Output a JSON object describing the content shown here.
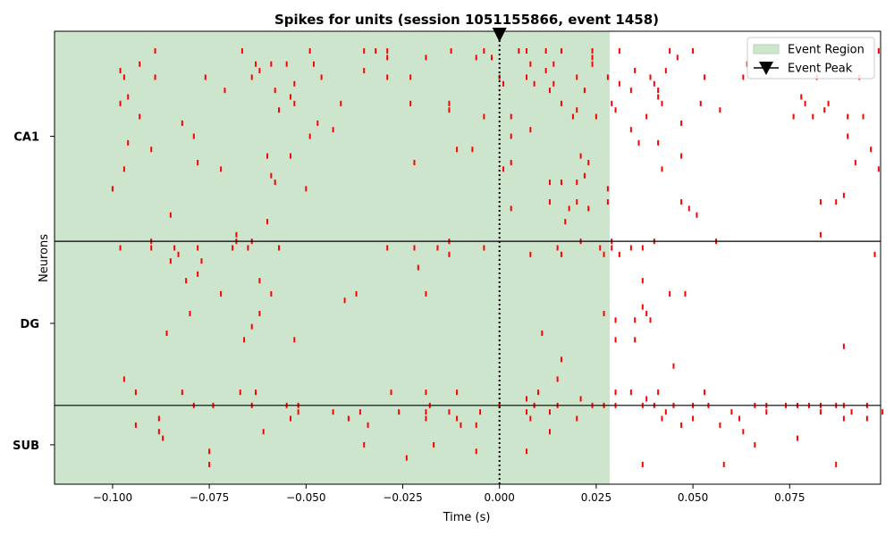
{
  "chart_data": {
    "type": "scatter",
    "title": "Spikes for units (session 1051155866, event 1458)",
    "xlabel": "Time (s)",
    "ylabel": "Neurons",
    "xlim": [
      -0.115,
      0.0985
    ],
    "ylim": [
      0,
      69
    ],
    "xticks": [
      -0.1,
      -0.075,
      -0.05,
      -0.025,
      0.0,
      0.025,
      0.05,
      0.075
    ],
    "xtick_labels": [
      "−0.100",
      "−0.075",
      "−0.050",
      "−0.025",
      "0.000",
      "0.025",
      "0.050",
      "0.075"
    ],
    "grid": false,
    "legend_position": "top-right",
    "legend": [
      {
        "label": "Event Region",
        "kind": "patch",
        "color": "#cde5cd"
      },
      {
        "label": "Event Peak",
        "kind": "marker",
        "color": "#000000"
      }
    ],
    "event_region": {
      "start": -0.115,
      "end": 0.0285,
      "color": "#cde5cd"
    },
    "event_peak": {
      "time": 0.0,
      "color": "#000000"
    },
    "spike_color": "#ff0000",
    "region_groups": [
      {
        "name": "CA1",
        "start": 37,
        "end": 69
      },
      {
        "name": "DG",
        "start": 12,
        "end": 37
      },
      {
        "name": "SUB",
        "start": 0,
        "end": 12
      }
    ],
    "boundaries": [
      37,
      12
    ],
    "series": [
      {
        "name": "CA1",
        "spikes": [
          [
            -0.089,
            66
          ],
          [
            -0.0665,
            66
          ],
          [
            -0.049,
            66
          ],
          [
            -0.035,
            66
          ],
          [
            -0.032,
            66
          ],
          [
            -0.029,
            66
          ],
          [
            -0.0125,
            66
          ],
          [
            -0.004,
            66
          ],
          [
            0.005,
            66
          ],
          [
            0.007,
            66
          ],
          [
            0.012,
            66
          ],
          [
            0.016,
            66
          ],
          [
            0.024,
            66
          ],
          [
            0.031,
            66
          ],
          [
            0.044,
            66
          ],
          [
            0.05,
            66
          ],
          [
            0.098,
            66
          ],
          [
            -0.029,
            65
          ],
          [
            -0.019,
            65
          ],
          [
            -0.006,
            65
          ],
          [
            -0.002,
            65
          ],
          [
            0.024,
            65
          ],
          [
            0.046,
            65
          ],
          [
            -0.093,
            64
          ],
          [
            -0.063,
            64
          ],
          [
            -0.059,
            64
          ],
          [
            -0.055,
            64
          ],
          [
            -0.048,
            64
          ],
          [
            0.008,
            64
          ],
          [
            0.014,
            64
          ],
          [
            0.024,
            64
          ],
          [
            0.064,
            64
          ],
          [
            -0.098,
            63
          ],
          [
            -0.062,
            63
          ],
          [
            -0.035,
            63
          ],
          [
            0.012,
            63
          ],
          [
            0.035,
            63
          ],
          [
            0.043,
            63
          ],
          [
            -0.097,
            62
          ],
          [
            -0.089,
            62
          ],
          [
            -0.076,
            62
          ],
          [
            -0.064,
            62
          ],
          [
            -0.046,
            62
          ],
          [
            -0.029,
            62
          ],
          [
            -0.023,
            62
          ],
          [
            0.0,
            62
          ],
          [
            0.007,
            62
          ],
          [
            0.02,
            62
          ],
          [
            0.028,
            62
          ],
          [
            0.039,
            62
          ],
          [
            0.053,
            62
          ],
          [
            0.063,
            62
          ],
          [
            0.082,
            62
          ],
          [
            0.093,
            62
          ],
          [
            -0.053,
            61
          ],
          [
            0.001,
            61
          ],
          [
            0.009,
            61
          ],
          [
            0.014,
            61
          ],
          [
            0.031,
            61
          ],
          [
            0.04,
            61
          ],
          [
            -0.071,
            60
          ],
          [
            -0.058,
            60
          ],
          [
            0.013,
            60
          ],
          [
            0.022,
            60
          ],
          [
            0.034,
            60
          ],
          [
            0.041,
            60
          ],
          [
            -0.096,
            59
          ],
          [
            -0.054,
            59
          ],
          [
            0.041,
            59
          ],
          [
            0.078,
            59
          ],
          [
            -0.098,
            58
          ],
          [
            -0.053,
            58
          ],
          [
            -0.041,
            58
          ],
          [
            -0.023,
            58
          ],
          [
            -0.013,
            58
          ],
          [
            0.016,
            58
          ],
          [
            0.029,
            58
          ],
          [
            0.042,
            58
          ],
          [
            0.052,
            58
          ],
          [
            0.079,
            58
          ],
          [
            0.085,
            58
          ],
          [
            -0.057,
            57
          ],
          [
            -0.013,
            57
          ],
          [
            0.02,
            57
          ],
          [
            0.03,
            57
          ],
          [
            0.057,
            57
          ],
          [
            0.084,
            57
          ],
          [
            -0.093,
            56
          ],
          [
            -0.004,
            56
          ],
          [
            0.003,
            56
          ],
          [
            0.019,
            56
          ],
          [
            0.025,
            56
          ],
          [
            0.038,
            56
          ],
          [
            0.076,
            56
          ],
          [
            0.081,
            56
          ],
          [
            0.09,
            56
          ],
          [
            0.094,
            56
          ],
          [
            -0.082,
            55
          ],
          [
            -0.047,
            55
          ],
          [
            0.047,
            55
          ],
          [
            -0.043,
            54
          ],
          [
            0.008,
            54
          ],
          [
            0.034,
            54
          ],
          [
            -0.079,
            53
          ],
          [
            -0.049,
            53
          ],
          [
            0.003,
            53
          ],
          [
            0.09,
            53
          ],
          [
            -0.096,
            52
          ],
          [
            0.036,
            52
          ],
          [
            0.041,
            52
          ],
          [
            -0.09,
            51
          ],
          [
            -0.011,
            51
          ],
          [
            -0.007,
            51
          ],
          [
            0.096,
            51
          ],
          [
            -0.06,
            50
          ],
          [
            -0.054,
            50
          ],
          [
            0.021,
            50
          ],
          [
            0.047,
            50
          ],
          [
            -0.078,
            49
          ],
          [
            -0.022,
            49
          ],
          [
            0.003,
            49
          ],
          [
            0.023,
            49
          ],
          [
            0.092,
            49
          ],
          [
            -0.097,
            48
          ],
          [
            -0.072,
            48
          ],
          [
            0.001,
            48
          ],
          [
            0.042,
            48
          ],
          [
            0.098,
            48
          ],
          [
            -0.059,
            47
          ],
          [
            0.022,
            47
          ],
          [
            -0.058,
            46
          ],
          [
            0.013,
            46
          ],
          [
            0.016,
            46
          ],
          [
            0.02,
            46
          ],
          [
            -0.1,
            45
          ],
          [
            -0.05,
            45
          ],
          [
            0.028,
            45
          ],
          [
            0.089,
            44
          ],
          [
            0.013,
            43
          ],
          [
            0.02,
            43
          ],
          [
            0.028,
            43
          ],
          [
            0.047,
            43
          ],
          [
            0.083,
            43
          ],
          [
            0.087,
            43
          ],
          [
            0.003,
            42
          ],
          [
            0.018,
            42
          ],
          [
            0.023,
            42
          ],
          [
            0.049,
            42
          ],
          [
            -0.085,
            41
          ],
          [
            0.051,
            41
          ],
          [
            -0.06,
            40
          ],
          [
            0.017,
            40
          ],
          [
            -0.068,
            38
          ],
          [
            0.083,
            38
          ]
        ]
      },
      {
        "name": "DG",
        "spikes": [
          [
            -0.09,
            37
          ],
          [
            -0.068,
            37
          ],
          [
            -0.064,
            37
          ],
          [
            -0.013,
            37
          ],
          [
            0.021,
            37
          ],
          [
            0.029,
            37
          ],
          [
            0.04,
            37
          ],
          [
            0.056,
            37
          ],
          [
            -0.098,
            36
          ],
          [
            -0.09,
            36
          ],
          [
            -0.084,
            36
          ],
          [
            -0.078,
            36
          ],
          [
            -0.069,
            36
          ],
          [
            -0.065,
            36
          ],
          [
            -0.057,
            36
          ],
          [
            -0.029,
            36
          ],
          [
            -0.022,
            36
          ],
          [
            -0.016,
            36
          ],
          [
            -0.004,
            36
          ],
          [
            0.015,
            36
          ],
          [
            0.026,
            36
          ],
          [
            0.029,
            36
          ],
          [
            0.034,
            36
          ],
          [
            0.037,
            36
          ],
          [
            -0.083,
            35
          ],
          [
            -0.013,
            35
          ],
          [
            0.008,
            35
          ],
          [
            0.016,
            35
          ],
          [
            0.027,
            35
          ],
          [
            0.031,
            35
          ],
          [
            0.097,
            35
          ],
          [
            -0.085,
            34
          ],
          [
            -0.077,
            34
          ],
          [
            -0.021,
            33
          ],
          [
            -0.078,
            32
          ],
          [
            -0.081,
            31
          ],
          [
            -0.062,
            31
          ],
          [
            0.037,
            31
          ],
          [
            -0.072,
            29
          ],
          [
            -0.059,
            29
          ],
          [
            -0.037,
            29
          ],
          [
            -0.019,
            29
          ],
          [
            0.044,
            29
          ],
          [
            0.048,
            29
          ],
          [
            -0.04,
            28
          ],
          [
            0.037,
            27
          ],
          [
            -0.08,
            26
          ],
          [
            -0.062,
            26
          ],
          [
            0.027,
            26
          ],
          [
            0.038,
            26
          ],
          [
            0.03,
            25
          ],
          [
            0.035,
            25
          ],
          [
            0.039,
            25
          ],
          [
            -0.064,
            24
          ],
          [
            -0.086,
            23
          ],
          [
            0.011,
            23
          ],
          [
            -0.066,
            22
          ],
          [
            -0.053,
            22
          ],
          [
            0.03,
            22
          ],
          [
            0.035,
            22
          ],
          [
            0.089,
            21
          ],
          [
            0.016,
            19
          ],
          [
            0.045,
            18
          ],
          [
            -0.097,
            16
          ],
          [
            0.015,
            16
          ]
        ]
      },
      {
        "name": "SUB",
        "spikes": [
          [
            -0.094,
            14
          ],
          [
            -0.082,
            14
          ],
          [
            -0.067,
            14
          ],
          [
            -0.063,
            14
          ],
          [
            -0.028,
            14
          ],
          [
            -0.019,
            14
          ],
          [
            -0.011,
            14
          ],
          [
            0.01,
            14
          ],
          [
            0.03,
            14
          ],
          [
            0.034,
            14
          ],
          [
            0.041,
            14
          ],
          [
            0.053,
            14
          ],
          [
            0.021,
            13
          ],
          [
            0.007,
            13
          ],
          [
            0.038,
            13
          ],
          [
            -0.079,
            12
          ],
          [
            -0.074,
            12
          ],
          [
            -0.064,
            12
          ],
          [
            -0.055,
            12
          ],
          [
            -0.052,
            12
          ],
          [
            -0.018,
            12
          ],
          [
            0.0,
            12
          ],
          [
            0.009,
            12
          ],
          [
            0.015,
            12
          ],
          [
            0.024,
            12
          ],
          [
            0.027,
            12
          ],
          [
            0.03,
            12
          ],
          [
            0.037,
            12
          ],
          [
            0.04,
            12
          ],
          [
            0.045,
            12
          ],
          [
            0.05,
            12
          ],
          [
            0.054,
            12
          ],
          [
            0.066,
            12
          ],
          [
            0.069,
            12
          ],
          [
            0.074,
            12
          ],
          [
            0.077,
            12
          ],
          [
            0.08,
            12
          ],
          [
            0.083,
            12
          ],
          [
            0.087,
            12
          ],
          [
            0.089,
            12
          ],
          [
            0.095,
            12
          ],
          [
            -0.052,
            11
          ],
          [
            -0.043,
            11
          ],
          [
            -0.036,
            11
          ],
          [
            -0.026,
            11
          ],
          [
            -0.019,
            11
          ],
          [
            -0.013,
            11
          ],
          [
            -0.005,
            11
          ],
          [
            0.007,
            11
          ],
          [
            0.013,
            11
          ],
          [
            0.043,
            11
          ],
          [
            0.06,
            11
          ],
          [
            0.069,
            11
          ],
          [
            0.083,
            11
          ],
          [
            0.091,
            11
          ],
          [
            0.099,
            11
          ],
          [
            -0.088,
            10
          ],
          [
            -0.054,
            10
          ],
          [
            -0.039,
            10
          ],
          [
            -0.019,
            10
          ],
          [
            -0.011,
            10
          ],
          [
            0.008,
            10
          ],
          [
            0.02,
            10
          ],
          [
            0.042,
            10
          ],
          [
            0.05,
            10
          ],
          [
            0.062,
            10
          ],
          [
            0.089,
            10
          ],
          [
            0.095,
            10
          ],
          [
            -0.094,
            9
          ],
          [
            -0.034,
            9
          ],
          [
            -0.01,
            9
          ],
          [
            -0.006,
            9
          ],
          [
            0.047,
            9
          ],
          [
            0.057,
            9
          ],
          [
            -0.088,
            8
          ],
          [
            -0.061,
            8
          ],
          [
            0.013,
            8
          ],
          [
            0.063,
            8
          ],
          [
            -0.087,
            7
          ],
          [
            0.077,
            7
          ],
          [
            -0.035,
            6
          ],
          [
            -0.017,
            6
          ],
          [
            0.066,
            6
          ],
          [
            -0.075,
            5
          ],
          [
            -0.006,
            5
          ],
          [
            0.007,
            5
          ],
          [
            -0.024,
            4
          ],
          [
            -0.075,
            3
          ],
          [
            0.037,
            3
          ],
          [
            0.058,
            3
          ],
          [
            0.087,
            3
          ]
        ]
      }
    ]
  }
}
